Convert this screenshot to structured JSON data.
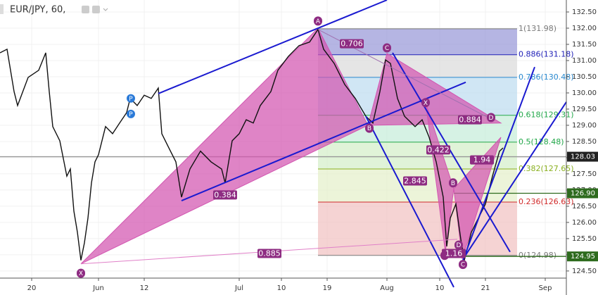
{
  "chart_data": {
    "type": "line",
    "title": "EUR/JPY, 60,",
    "xlim": [
      0,
      161
    ],
    "ylim": [
      124.28,
      132.87
    ],
    "grid": true,
    "xticks": [
      {
        "value": 9,
        "label": "20"
      },
      {
        "value": 28,
        "label": "Jun"
      },
      {
        "value": 41,
        "label": "12"
      },
      {
        "value": 68,
        "label": "Jul"
      },
      {
        "value": 80,
        "label": "10"
      },
      {
        "value": 93,
        "label": "19"
      },
      {
        "value": 110,
        "label": "Aug"
      },
      {
        "value": 125,
        "label": "10"
      },
      {
        "value": 138,
        "label": "21"
      },
      {
        "value": 155,
        "label": "Sep"
      }
    ],
    "yticks": [
      {
        "value": 124.5,
        "label": "124.50"
      },
      {
        "value": 125,
        "label": "125.00"
      },
      {
        "value": 125.5,
        "label": "125.50"
      },
      {
        "value": 126,
        "label": "126.00"
      },
      {
        "value": 126.5,
        "label": "126.50"
      },
      {
        "value": 127,
        "label": "127.00"
      },
      {
        "value": 127.5,
        "label": "127.50"
      },
      {
        "value": 128,
        "label": "128.00"
      },
      {
        "value": 128.5,
        "label": "128.50"
      },
      {
        "value": 129,
        "label": "129.00"
      },
      {
        "value": 129.5,
        "label": "129.50"
      },
      {
        "value": 130,
        "label": "130.00"
      },
      {
        "value": 130.5,
        "label": "130.50"
      },
      {
        "value": 131,
        "label": "131.00"
      },
      {
        "value": 131.5,
        "label": "131.50"
      },
      {
        "value": 132,
        "label": "132.00"
      },
      {
        "value": 132.5,
        "label": "132.50"
      }
    ],
    "series": [
      {
        "name": "EUR/JPY",
        "color": "#111111",
        "x": [
          0,
          2,
          4,
          5,
          8,
          11,
          13,
          14,
          15,
          17,
          19,
          20,
          21,
          22,
          23,
          24,
          25,
          26,
          27,
          28,
          30,
          32,
          34,
          36,
          37,
          39,
          41,
          43,
          45,
          46,
          48,
          50,
          51.6,
          54,
          57,
          60,
          63,
          64,
          66,
          68,
          70,
          72,
          74,
          77,
          79,
          82,
          85,
          88,
          90.4,
          92,
          95,
          98,
          101,
          104,
          106,
          108,
          109.6,
          111,
          113,
          115,
          118,
          120,
          122,
          124,
          126,
          127,
          128,
          129.6,
          131,
          132,
          134,
          137,
          138,
          140,
          142,
          143
        ],
        "values": [
          131.24,
          131.35,
          130.04,
          129.61,
          130.48,
          130.7,
          131.24,
          130.04,
          128.96,
          128.52,
          127.43,
          127.65,
          126.35,
          125.7,
          124.83,
          125.37,
          126.13,
          127.22,
          127.87,
          128.09,
          128.96,
          128.74,
          129.07,
          129.39,
          129.83,
          129.61,
          129.93,
          129.83,
          130.15,
          128.74,
          128.3,
          127.87,
          126.78,
          127.65,
          128.2,
          127.87,
          127.65,
          127.22,
          128.52,
          128.74,
          129.17,
          129.07,
          129.61,
          130.04,
          130.7,
          131.13,
          131.46,
          131.57,
          131.96,
          131.35,
          130.91,
          130.26,
          129.83,
          129.28,
          129.07,
          130.04,
          131.02,
          130.91,
          129.83,
          129.28,
          128.96,
          129.17,
          128.63,
          127.87,
          126.78,
          125.26,
          126.13,
          126.57,
          125.48,
          124.83,
          125.7,
          126.35,
          126.57,
          127.43,
          128.2,
          128.3
        ]
      }
    ],
    "fib": {
      "x": [
        90.4,
        147
      ],
      "label_x": 147.4,
      "levels": [
        {
          "label": "1(131.98)",
          "value": 131.98,
          "color": "#7a7a7a",
          "fill": "#9c9cd9"
        },
        {
          "label": "0.886(131.18)",
          "value": 131.18,
          "color": "#2222b8",
          "fill": "#dcdcdc"
        },
        {
          "label": "0.786(130.48)",
          "value": 130.48,
          "color": "#2a8ad0",
          "fill": "#c0def0"
        },
        {
          "label": "0.618(129.31)",
          "value": 129.31,
          "color": "#22a84a",
          "fill": "#c8eedb"
        },
        {
          "label": "0.5(128.48)",
          "value": 128.48,
          "color": "#22a84a",
          "fill": "#d5efcb"
        },
        {
          "label": "0.382(127.65)",
          "value": 127.65,
          "color": "#8ab020",
          "fill": "#e6f0cc"
        },
        {
          "label": "0.236(126.63)",
          "value": 126.63,
          "color": "#d02a2a",
          "fill": "#f2c4c4"
        },
        {
          "label": "0(124.98)",
          "value": 124.98,
          "color": "#7a7a7a"
        }
      ]
    },
    "patterns": [
      {
        "color": "#d255b0",
        "x": [
          23,
          90.4,
          104.6,
          110,
          142.4
        ],
        "y": [
          124.72,
          132,
          129.0,
          131.22,
          129.07
        ]
      },
      {
        "color": "#d255b0",
        "x": [
          121,
          126.6,
          129,
          131.4,
          142.4
        ],
        "y": [
          129.7,
          125.09,
          127.04,
          124.87,
          128.63
        ]
      }
    ],
    "lines": [
      {
        "color": "#1a1ad0",
        "x": [
          45,
          110
        ],
        "y": [
          129.98,
          132.87
        ]
      },
      {
        "color": "#1a1ad0",
        "x": [
          51.6,
          132.4
        ],
        "y": [
          126.67,
          130.33
        ]
      },
      {
        "color": "#1a1ad0",
        "x": [
          104,
          129
        ],
        "y": [
          129.28,
          124.0
        ]
      },
      {
        "color": "#1a1ad0",
        "x": [
          111.6,
          145
        ],
        "y": [
          131.24,
          125.09
        ]
      },
      {
        "color": "#1a1ad0",
        "x": [
          131,
          152
        ],
        "y": [
          124.65,
          130.8
        ]
      },
      {
        "color": "#1a1ad0",
        "x": [
          132,
          161
        ],
        "y": [
          124.93,
          129.72
        ]
      },
      {
        "color": "#e080c8",
        "x": [
          23,
          130
        ],
        "y": [
          124.72,
          125.48
        ]
      },
      {
        "color": "#a070b0",
        "x": [
          90.4,
          140
        ],
        "y": [
          131.96,
          129.17
        ]
      }
    ],
    "annotations": [
      {
        "text": "X",
        "kind": "point",
        "x": 23,
        "y": 124.43
      },
      {
        "text": "A",
        "kind": "point",
        "x": 90.4,
        "y": 132.22
      },
      {
        "text": "B",
        "kind": "point",
        "x": 105,
        "y": 128.91
      },
      {
        "text": "C",
        "kind": "point",
        "x": 110,
        "y": 131.39
      },
      {
        "text": "D",
        "kind": "point",
        "x": 139.6,
        "y": 129.24
      },
      {
        "text": "X",
        "kind": "point",
        "x": 121,
        "y": 129.7
      },
      {
        "text": "A",
        "kind": "point",
        "x": 126.4,
        "y": 124.98
      },
      {
        "text": "B",
        "kind": "point",
        "x": 128.8,
        "y": 127.22
      },
      {
        "text": "C",
        "kind": "point",
        "x": 131.6,
        "y": 124.7
      },
      {
        "text": "D",
        "kind": "point",
        "x": 130.4,
        "y": 125.3
      },
      {
        "text": "P",
        "kind": "pivot",
        "x": 37.2,
        "y": 129.83
      },
      {
        "text": "P",
        "kind": "pivot",
        "x": 37.2,
        "y": 129.35
      },
      {
        "text": "0.706",
        "kind": "ratio",
        "x": 100,
        "y": 131.52
      },
      {
        "text": "0.384",
        "kind": "ratio",
        "x": 64,
        "y": 126.85
      },
      {
        "text": "0.885",
        "kind": "ratio",
        "x": 76.6,
        "y": 125.04
      },
      {
        "text": "0.884",
        "kind": "ratio",
        "x": 133.6,
        "y": 129.17
      },
      {
        "text": "0.422",
        "kind": "ratio",
        "x": 124.6,
        "y": 128.24
      },
      {
        "text": "2.845",
        "kind": "ratio",
        "x": 118,
        "y": 127.28
      },
      {
        "text": "1.94",
        "kind": "ratio",
        "x": 137,
        "y": 127.93
      },
      {
        "text": "1.16",
        "kind": "ratio",
        "x": 129,
        "y": 125.04
      }
    ],
    "price_markers": [
      {
        "label": "128.03",
        "value": 128.03,
        "color": "#222222",
        "line": "#999999",
        "from": 0
      },
      {
        "label": "126.90",
        "value": 126.9,
        "color": "#2e6b1e",
        "line": "#2e6b1e",
        "from": 129
      },
      {
        "label": "124.95",
        "value": 124.95,
        "color": "#2e6b1e",
        "line": "#2e6b1e",
        "from": 131
      }
    ]
  }
}
